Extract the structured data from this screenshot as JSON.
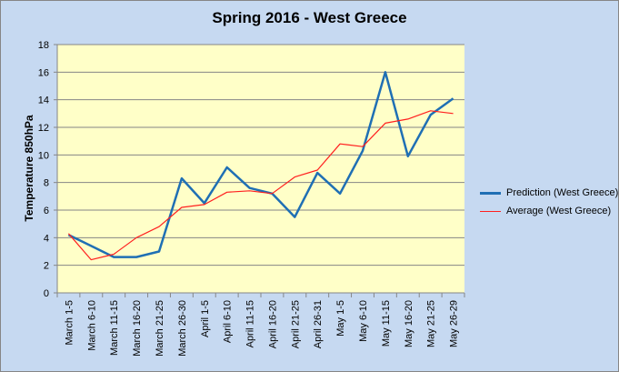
{
  "chart_data": {
    "type": "line",
    "title": "Spring 2016 - West Greece",
    "xlabel": "",
    "ylabel": "Temperature 850hPa",
    "ylim": [
      0,
      18
    ],
    "yticks": [
      0,
      2,
      4,
      6,
      8,
      10,
      12,
      14,
      16,
      18
    ],
    "grid": true,
    "legend_position": "right",
    "plot_background": "#ffffc8",
    "chart_background": "#c6d9f1",
    "categories": [
      "March 1-5",
      "March 6-10",
      "March 11-15",
      "March 16-20",
      "March 21-25",
      "March 26-30",
      "April 1-5",
      "April 6-10",
      "April 11-15",
      "April 16-20",
      "April 21-25",
      "April 26-31",
      "May 1-5",
      "May 6-10",
      "May 11-15",
      "May 16-20",
      "May 21-25",
      "May 26-29"
    ],
    "series": [
      {
        "name": "Prediction (West Greece)",
        "color": "#1f6fb4",
        "values": [
          4.2,
          3.4,
          2.6,
          2.6,
          3.0,
          8.3,
          6.5,
          9.1,
          7.6,
          7.2,
          5.5,
          8.7,
          7.2,
          10.3,
          16.0,
          9.9,
          12.9,
          14.1
        ]
      },
      {
        "name": "Average (West Greece)",
        "color": "#ff1f1f",
        "values": [
          4.3,
          2.4,
          2.8,
          4.0,
          4.8,
          6.2,
          6.4,
          7.3,
          7.4,
          7.2,
          8.4,
          8.9,
          10.8,
          10.6,
          12.3,
          12.6,
          13.2,
          13.0
        ]
      }
    ]
  }
}
